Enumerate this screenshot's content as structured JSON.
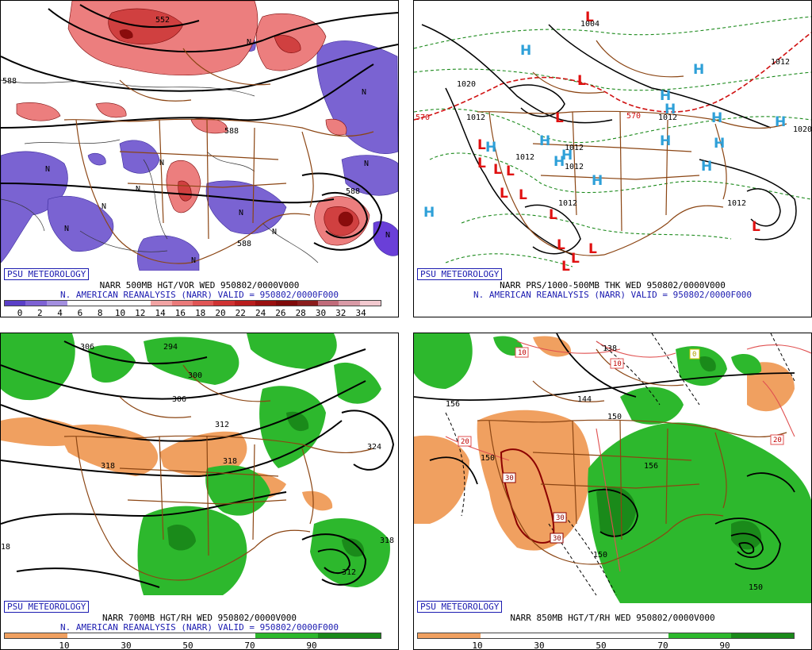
{
  "panels": [
    {
      "credit": "PSU METEOROLOGY",
      "title": "NARR 500MB HGT/VOR WED 950802/0000V000",
      "subtitle": "N. AMERICAN REANALYSIS (NARR) VALID = 950802/0000F000",
      "colorbar": {
        "labels": [
          "0",
          "2",
          "4",
          "6",
          "8",
          "10",
          "12",
          "14",
          "16",
          "18",
          "20",
          "22",
          "24",
          "26",
          "28",
          "30",
          "32",
          "34"
        ],
        "colors": [
          "#5a3fc7",
          "#7e62d4",
          "#a38fe0",
          "#ffffff",
          "#ffffff",
          "#ffffff",
          "#ffffff",
          "#f2a4a4",
          "#ea7a7a",
          "#e05555",
          "#cf3333",
          "#b81d1d",
          "#9a1010",
          "#7f0a0a",
          "#8a1c1c",
          "#c06b7a",
          "#d99aa6",
          "#f2c9cf"
        ]
      },
      "contour_labels": [
        "552",
        "588",
        "588",
        "588",
        "588"
      ],
      "vort_labels": [
        "N",
        "N",
        "N",
        "N",
        "N",
        "N",
        "N",
        "N",
        "N",
        "N",
        "N",
        "N"
      ]
    },
    {
      "credit": "PSU METEOROLOGY",
      "title": "NARR PRS/1000-500MB THK WED 950802/0000V000",
      "subtitle": "N. AMERICAN REANALYSIS (NARR) VALID = 950802/0000F000",
      "pressure_labels": [
        "1004",
        "1020",
        "1012",
        "1012",
        "1012",
        "1012",
        "1012",
        "1012",
        "1012",
        "1020",
        "1012",
        "1012",
        "570",
        "570"
      ],
      "highs": [
        "H",
        "H",
        "H",
        "H",
        "H",
        "H",
        "H",
        "H",
        "H",
        "H",
        "H",
        "H",
        "H",
        "H",
        "H"
      ],
      "lows": [
        "L",
        "L",
        "L",
        "L",
        "L",
        "L",
        "L",
        "L",
        "L",
        "L",
        "L",
        "L",
        "L",
        "L",
        "L"
      ]
    },
    {
      "credit": "PSU METEOROLOGY",
      "title": "NARR 700MB HGT/RH WED 950802/0000V000",
      "subtitle": "N. AMERICAN REANALYSIS (NARR) VALID = 950802/0000F000",
      "colorbar": {
        "labels": [
          "10",
          "30",
          "50",
          "70",
          "90"
        ],
        "colors": [
          "#f0a060",
          "#ffffff",
          "#ffffff",
          "#ffffff",
          "#2db82d",
          "#1a8a1a"
        ]
      },
      "contour_labels": [
        "306",
        "294",
        "300",
        "306",
        "312",
        "318",
        "318",
        "324",
        "318",
        "312",
        "18"
      ]
    },
    {
      "credit": "PSU METEOROLOGY",
      "title": "NARR 850MB HGT/T/RH WED 950802/0000V000",
      "colorbar": {
        "labels": [
          "10",
          "30",
          "50",
          "70",
          "90"
        ],
        "colors": [
          "#f0a060",
          "#ffffff",
          "#ffffff",
          "#ffffff",
          "#2db82d",
          "#1a8a1a"
        ]
      },
      "contour_labels": [
        "138",
        "156",
        "144",
        "150",
        "150",
        "156",
        "150",
        "150",
        "150"
      ],
      "temp_labels": [
        "10",
        "10",
        "20",
        "20",
        "30",
        "30",
        "30",
        "0"
      ]
    }
  ]
}
